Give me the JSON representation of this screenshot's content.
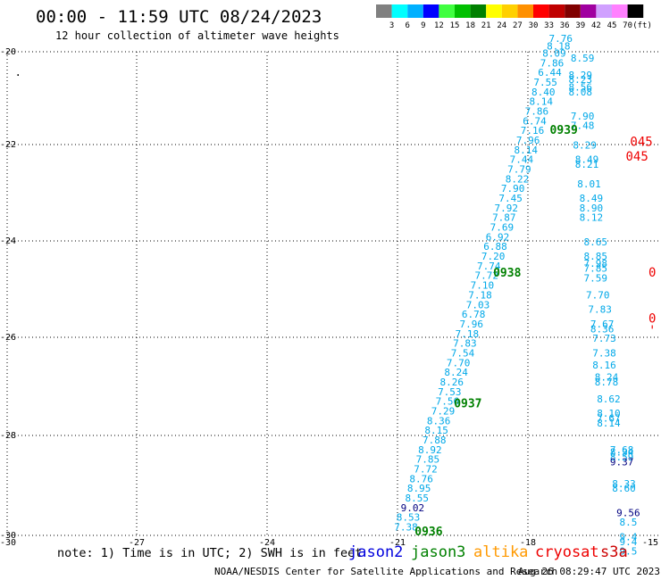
{
  "header": {
    "title": "00:00 - 11:59 UTC 08/24/2023",
    "subtitle": "12 hour collection of altimeter wave heights"
  },
  "legend": {
    "unit": "(ft)",
    "bins": [
      {
        "label": "3",
        "color": "#808080"
      },
      {
        "label": "6",
        "color": "#00ffff"
      },
      {
        "label": "9",
        "color": "#00b0ff"
      },
      {
        "label": "12",
        "color": "#0000ff"
      },
      {
        "label": "15",
        "color": "#40ff40"
      },
      {
        "label": "18",
        "color": "#00c000"
      },
      {
        "label": "21",
        "color": "#008000"
      },
      {
        "label": "24",
        "color": "#ffff00"
      },
      {
        "label": "27",
        "color": "#ffd000"
      },
      {
        "label": "30",
        "color": "#ff9000"
      },
      {
        "label": "33",
        "color": "#ff0000"
      },
      {
        "label": "36",
        "color": "#c00000"
      },
      {
        "label": "39",
        "color": "#800000"
      },
      {
        "label": "42",
        "color": "#a000a0"
      },
      {
        "label": "45",
        "color": "#d0a0ff"
      },
      {
        "label": "70",
        "color": "#ff80ff"
      },
      {
        "label": "",
        "color": "#000000"
      }
    ]
  },
  "footer": {
    "note": "note: 1) Time is in UTC; 2) SWH is in feet",
    "satellites": [
      {
        "name": "jason2",
        "color": "#0000dd"
      },
      {
        "name": "jason3",
        "color": "#008000"
      },
      {
        "name": "altika",
        "color": "#ff9900"
      },
      {
        "name": "cryosat",
        "color": "#ee0000"
      },
      {
        "name": "s3a",
        "color": "#cc0000"
      }
    ],
    "credit": "NOAA/NESDIS Center for Satellite Applications and Research",
    "timestamp": "Aug 26 08:29:47 UTC 2023"
  },
  "chart_data": {
    "type": "scatter",
    "title": "00:00 - 11:59 UTC 08/24/2023",
    "subtitle": "12 hour collection of altimeter wave heights",
    "xlim": [
      -30,
      -15
    ],
    "ylim": [
      -30,
      -20
    ],
    "x_ticks": [
      -30,
      -27,
      -24,
      -21,
      -18,
      -15
    ],
    "y_ticks": [
      -20,
      -22,
      -24,
      -26,
      -28,
      -30
    ],
    "x_tick_labels": [
      "-30",
      "-27",
      "-24",
      "-21",
      "-18",
      "-15"
    ],
    "y_tick_labels": [
      "-20",
      "-22",
      "-24",
      "-26",
      "-28",
      "-30"
    ],
    "grid": true,
    "track_main": {
      "color": "#00a8e8",
      "points": [
        {
          "x": -20.85,
          "y": -29.9,
          "v": "7.38"
        },
        {
          "x": -20.8,
          "y": -29.7,
          "v": "8.53"
        },
        {
          "x": -20.7,
          "y": -29.5,
          "v": "9.02",
          "color": "#000080"
        },
        {
          "x": -20.6,
          "y": -29.3,
          "v": "8.55"
        },
        {
          "x": -20.55,
          "y": -29.1,
          "v": "8.95"
        },
        {
          "x": -20.5,
          "y": -28.9,
          "v": "8.76"
        },
        {
          "x": -20.4,
          "y": -28.7,
          "v": "7.72"
        },
        {
          "x": -20.35,
          "y": -28.5,
          "v": "7.85"
        },
        {
          "x": -20.3,
          "y": -28.3,
          "v": "8.92"
        },
        {
          "x": -20.2,
          "y": -28.1,
          "v": "7.88"
        },
        {
          "x": -20.15,
          "y": -27.9,
          "v": "8.15"
        },
        {
          "x": -20.1,
          "y": -27.7,
          "v": "8.36"
        },
        {
          "x": -20.0,
          "y": -27.5,
          "v": "7.29"
        },
        {
          "x": -19.9,
          "y": -27.3,
          "v": "7.56"
        },
        {
          "x": -19.85,
          "y": -27.1,
          "v": "7.53"
        },
        {
          "x": -19.8,
          "y": -26.9,
          "v": "8.26"
        },
        {
          "x": -19.7,
          "y": -26.7,
          "v": "8.24"
        },
        {
          "x": -19.65,
          "y": -26.5,
          "v": "7.70"
        },
        {
          "x": -19.55,
          "y": -26.3,
          "v": "7.54"
        },
        {
          "x": -19.5,
          "y": -26.1,
          "v": "7.83"
        },
        {
          "x": -19.45,
          "y": -25.9,
          "v": "7.18"
        },
        {
          "x": -19.35,
          "y": -25.7,
          "v": "7.96"
        },
        {
          "x": -19.3,
          "y": -25.5,
          "v": "6.78"
        },
        {
          "x": -19.2,
          "y": -25.3,
          "v": "7.03"
        },
        {
          "x": -19.15,
          "y": -25.1,
          "v": "7.18"
        },
        {
          "x": -19.1,
          "y": -24.9,
          "v": "7.10"
        },
        {
          "x": -19.0,
          "y": -24.7,
          "v": "7.72"
        },
        {
          "x": -18.95,
          "y": -24.5,
          "v": "7.74"
        },
        {
          "x": -18.85,
          "y": -24.3,
          "v": "7.20"
        },
        {
          "x": -18.8,
          "y": -24.1,
          "v": "6.88"
        },
        {
          "x": -18.75,
          "y": -23.9,
          "v": "6.92"
        },
        {
          "x": -18.65,
          "y": -23.7,
          "v": "7.69"
        },
        {
          "x": -18.6,
          "y": -23.5,
          "v": "7.87"
        },
        {
          "x": -18.55,
          "y": -23.3,
          "v": "7.92"
        },
        {
          "x": -18.45,
          "y": -23.1,
          "v": "7.45"
        },
        {
          "x": -18.4,
          "y": -22.9,
          "v": "7.90"
        },
        {
          "x": -18.3,
          "y": -22.7,
          "v": "8.22"
        },
        {
          "x": -18.25,
          "y": -22.5,
          "v": "7.79"
        },
        {
          "x": -18.2,
          "y": -22.3,
          "v": "7.44"
        },
        {
          "x": -18.1,
          "y": -22.1,
          "v": "8.14"
        },
        {
          "x": -18.05,
          "y": -21.9,
          "v": "7.96"
        },
        {
          "x": -17.95,
          "y": -21.7,
          "v": "7.16"
        },
        {
          "x": -17.9,
          "y": -21.5,
          "v": "6.74"
        },
        {
          "x": -17.85,
          "y": -21.3,
          "v": "7.86"
        },
        {
          "x": -17.75,
          "y": -21.1,
          "v": "8.14"
        },
        {
          "x": -17.7,
          "y": -20.9,
          "v": "8.40"
        },
        {
          "x": -17.65,
          "y": -20.7,
          "v": "7.55"
        },
        {
          "x": -17.55,
          "y": -20.5,
          "v": "6.44"
        },
        {
          "x": -17.5,
          "y": -20.3,
          "v": "7.86"
        },
        {
          "x": -17.45,
          "y": -20.1,
          "v": "8.09"
        },
        {
          "x": -17.35,
          "y": -19.95,
          "v": "8.18"
        },
        {
          "x": -17.3,
          "y": -19.8,
          "v": "7.76"
        }
      ]
    },
    "track_east": {
      "color": "#00a8e8",
      "points": [
        {
          "x": -16.8,
          "y": -20.2,
          "v": "8.59"
        },
        {
          "x": -16.85,
          "y": -20.55,
          "v": "8.29"
        },
        {
          "x": -16.85,
          "y": -20.65,
          "v": "8.23"
        },
        {
          "x": -16.85,
          "y": -20.8,
          "v": "8.56"
        },
        {
          "x": -16.85,
          "y": -20.9,
          "v": "8.08"
        },
        {
          "x": -16.8,
          "y": -21.4,
          "v": "7.90"
        },
        {
          "x": -16.8,
          "y": -21.6,
          "v": "7.48"
        },
        {
          "x": -16.75,
          "y": -22.0,
          "v": "8.29"
        },
        {
          "x": -16.7,
          "y": -22.3,
          "v": "8.49"
        },
        {
          "x": -16.7,
          "y": -22.4,
          "v": "8.21"
        },
        {
          "x": -16.65,
          "y": -22.8,
          "v": "8.01"
        },
        {
          "x": -16.6,
          "y": -23.1,
          "v": "8.49"
        },
        {
          "x": -16.6,
          "y": -23.3,
          "v": "8.90"
        },
        {
          "x": -16.6,
          "y": -23.5,
          "v": "8.12"
        },
        {
          "x": -16.5,
          "y": -24.0,
          "v": "8.65"
        },
        {
          "x": -16.5,
          "y": -24.3,
          "v": "8.85"
        },
        {
          "x": -16.5,
          "y": -24.45,
          "v": "7.98"
        },
        {
          "x": -16.5,
          "y": -24.55,
          "v": "7.85"
        },
        {
          "x": -16.5,
          "y": -24.75,
          "v": "7.59"
        },
        {
          "x": -16.45,
          "y": -25.1,
          "v": "7.70"
        },
        {
          "x": -16.4,
          "y": -25.4,
          "v": "7.83"
        },
        {
          "x": -16.35,
          "y": -25.7,
          "v": "7.67"
        },
        {
          "x": -16.35,
          "y": -25.8,
          "v": "8.36"
        },
        {
          "x": -16.3,
          "y": -26.0,
          "v": "7.73"
        },
        {
          "x": -16.3,
          "y": -26.3,
          "v": "7.38"
        },
        {
          "x": -16.3,
          "y": -26.55,
          "v": "8.16"
        },
        {
          "x": -16.25,
          "y": -26.8,
          "v": "8.24"
        },
        {
          "x": -16.25,
          "y": -26.9,
          "v": "8.78"
        },
        {
          "x": -16.2,
          "y": -27.25,
          "v": "8.62"
        },
        {
          "x": -16.2,
          "y": -27.55,
          "v": "8.10"
        },
        {
          "x": -16.2,
          "y": -27.65,
          "v": "7.67"
        },
        {
          "x": -16.2,
          "y": -27.75,
          "v": "8.14"
        },
        {
          "x": -15.9,
          "y": -28.3,
          "v": "7.68"
        },
        {
          "x": -15.9,
          "y": -28.35,
          "v": "8.34"
        },
        {
          "x": -15.9,
          "y": -28.45,
          "v": "8.59"
        },
        {
          "x": -15.9,
          "y": -28.55,
          "v": "9.37",
          "color": "#000080"
        },
        {
          "x": -15.85,
          "y": -29.0,
          "v": "8.33"
        },
        {
          "x": -15.85,
          "y": -29.1,
          "v": "8.60"
        },
        {
          "x": -15.75,
          "y": -29.6,
          "v": "9.56",
          "color": "#000080"
        },
        {
          "x": -15.75,
          "y": -29.8,
          "v": "8.5"
        },
        {
          "x": -15.75,
          "y": -30.1,
          "v": "9.4"
        },
        {
          "x": -15.75,
          "y": -30.2,
          "v": "9.4"
        },
        {
          "x": -15.75,
          "y": -30.4,
          "v": "9.5"
        }
      ]
    },
    "track_red": {
      "color": "#ee0000",
      "points": [
        {
          "x": -15.45,
          "y": -21.95,
          "v": "045"
        },
        {
          "x": -15.55,
          "y": -22.25,
          "v": "045"
        },
        {
          "x": -15.2,
          "y": -24.65,
          "v": "0"
        },
        {
          "x": -15.2,
          "y": -25.6,
          "v": "0"
        },
        {
          "x": -15.2,
          "y": -25.85,
          "v": "'"
        }
      ]
    },
    "time_labels": [
      {
        "x": -17.55,
        "y": -21.7,
        "v": "0939",
        "color": "#008000"
      },
      {
        "x": -18.85,
        "y": -24.65,
        "v": "0938",
        "color": "#008000"
      },
      {
        "x": -19.75,
        "y": -27.35,
        "v": "0937",
        "color": "#008000"
      },
      {
        "x": -20.65,
        "y": -30.0,
        "v": "0936",
        "color": "#008000"
      }
    ],
    "misc_marks": [
      {
        "x": -29.75,
        "y": -20.5,
        "v": ".",
        "color": "#000000"
      }
    ]
  }
}
